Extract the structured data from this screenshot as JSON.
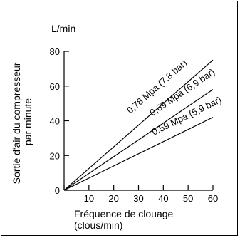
{
  "chart_data": {
    "type": "line",
    "y_unit": "L/min",
    "ylabel_lines": [
      "Sortie d'air du compresseur",
      "par minute"
    ],
    "xlabel_lines": [
      "Fréquence de clouage",
      "(clous/min)"
    ],
    "xlim": [
      0,
      60
    ],
    "ylim": [
      0,
      80
    ],
    "x_ticks": [
      0,
      10,
      20,
      30,
      40,
      50,
      60
    ],
    "y_ticks": [
      0,
      20,
      40,
      60,
      80
    ],
    "x_tick_labels": [
      "",
      "10",
      "20",
      "30",
      "40",
      "50",
      "60"
    ],
    "y_tick_labels": [
      "0",
      "20",
      "40",
      "60",
      "80"
    ],
    "grid": false,
    "series": [
      {
        "name": "0,78 Mpa (7,8 bar)",
        "x": [
          0,
          60
        ],
        "y": [
          0,
          75
        ]
      },
      {
        "name": "0,69 Mpa (6,9 bar)",
        "x": [
          0,
          60
        ],
        "y": [
          0,
          58
        ]
      },
      {
        "name": "0,59 Mpa (5,9 bar)",
        "x": [
          0,
          60
        ],
        "y": [
          0,
          42
        ]
      }
    ]
  }
}
